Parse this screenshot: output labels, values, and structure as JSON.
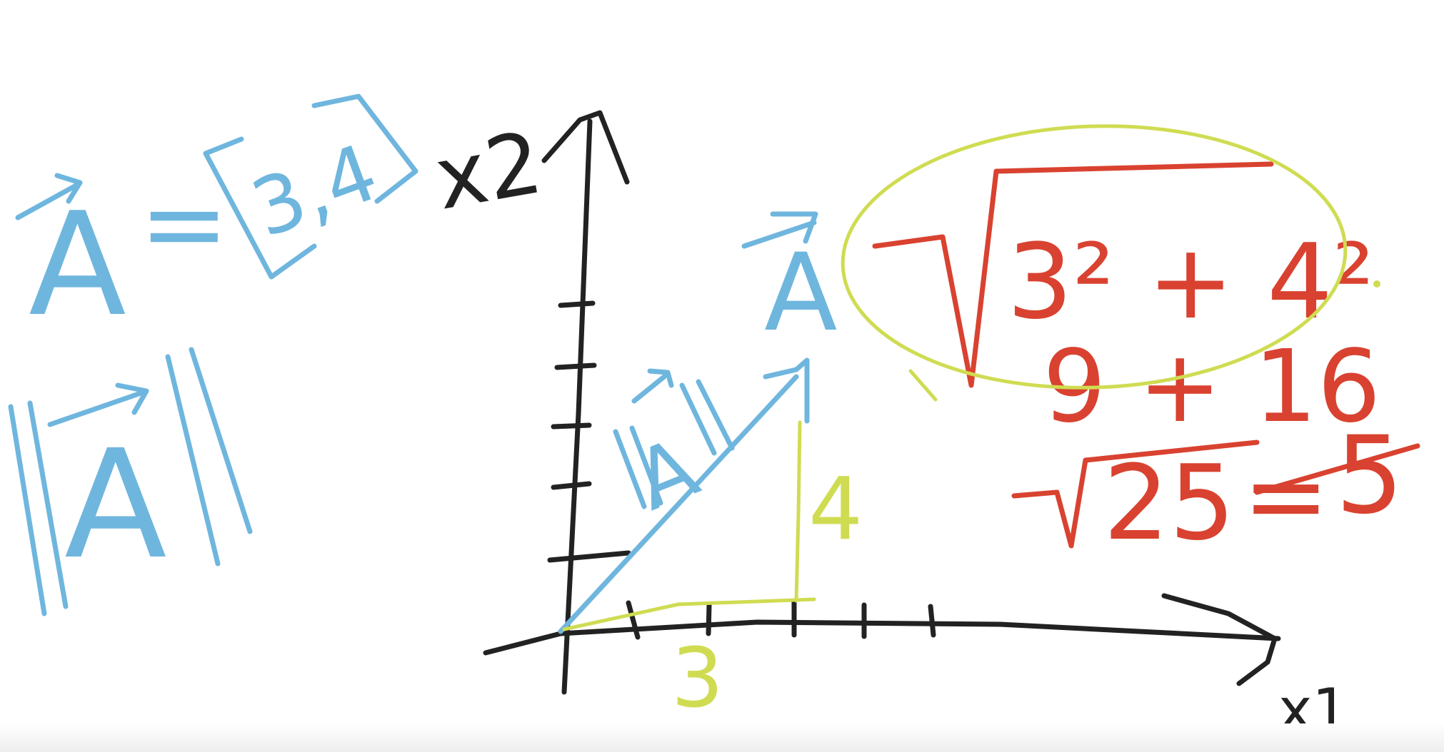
{
  "colors": {
    "blue": "#6fb6de",
    "black": "#222222",
    "red": "#d94230",
    "lime": "#cfdc52",
    "background": "#ffffff"
  },
  "left_notes": {
    "vector_symbol": "A",
    "equals": "=",
    "components": "3,4",
    "norm_symbol": "A"
  },
  "axes": {
    "y_label": "x2",
    "x_label": "x1"
  },
  "vector_label": "A",
  "norm_label": "A",
  "components": {
    "x": "3",
    "y": "4"
  },
  "calculation": {
    "squares": "3² + 4²",
    "sum": "9 + 16",
    "root": "25",
    "equals": "=",
    "result": "5"
  }
}
